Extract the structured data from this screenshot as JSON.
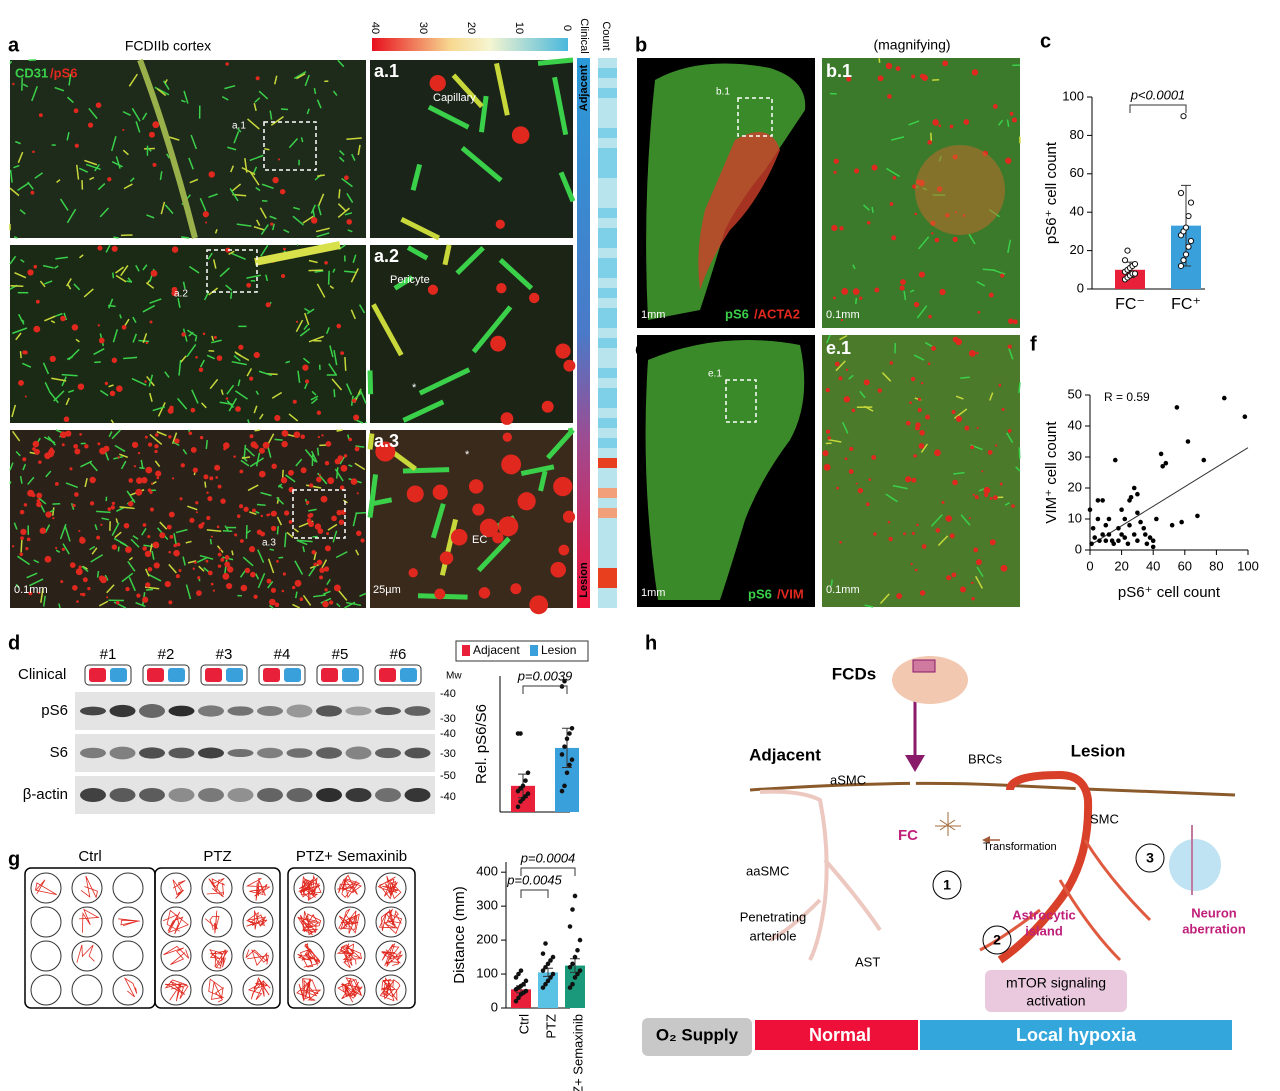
{
  "figure": {
    "panel_labels": [
      "a",
      "b",
      "c",
      "d",
      "e",
      "f",
      "g",
      "h"
    ],
    "a": {
      "title": "FCDIIb cortex",
      "stain_green": "CD31",
      "stain_red": "/pS6",
      "insets": [
        "a.1",
        "a.2",
        "a.3"
      ],
      "roi_labels": [
        "a.1",
        "a.2",
        "a.3"
      ],
      "annotations": [
        "Capillary",
        "Pericyte",
        "*",
        "*",
        "EC"
      ],
      "scalebars": [
        "0.1mm",
        "25µm"
      ],
      "colorbar_ticks": [
        40,
        30,
        20,
        10,
        0
      ],
      "strip_headers": [
        "Clinical",
        "Count"
      ],
      "strip_labels": [
        "Adjacent",
        "Lesion"
      ]
    },
    "b": {
      "subtitle": "(magnifying)",
      "inset": "b.1",
      "roi": "b.1",
      "scalebars": [
        "1mm",
        "0.1mm"
      ],
      "stain_green": "pS6",
      "stain_red": "/ACTA2"
    },
    "e": {
      "inset": "e.1",
      "roi": "e.1",
      "scalebars": [
        "1mm",
        "0.1mm"
      ],
      "stain_green": "pS6",
      "stain_red": "/VIM"
    },
    "d": {
      "lanes": [
        "#1",
        "#2",
        "#3",
        "#4",
        "#5",
        "#6"
      ],
      "row_clinical": "Clinical",
      "rows": [
        "pS6",
        "S6",
        "β-actin"
      ],
      "mw_header": "Mw",
      "mw": [
        "-40",
        "-30",
        "-40",
        "-30",
        "-50",
        "-40"
      ]
    },
    "g": {
      "groups": [
        "Ctrl",
        "PTZ",
        "PTZ+ Semaxinib"
      ]
    },
    "h": {
      "fcds": "FCDs",
      "adjacent": "Adjacent",
      "lesion": "Lesion",
      "asmc": "aSMC",
      "brcs": "BRCs",
      "smc": "SMC",
      "fc": "FC",
      "transformation": "Transformation",
      "aasmc": "aaSMC",
      "arteriole": [
        "Penetrating",
        "arteriole"
      ],
      "ast": "AST",
      "astro": [
        "Astrocytic",
        "island"
      ],
      "neuron": [
        "Neuron",
        "aberration"
      ],
      "mtor": [
        "mTOR signaling",
        "activation"
      ],
      "steps": [
        "1",
        "2",
        "3"
      ],
      "supply": "O₂ Supply",
      "normal": "Normal",
      "hypoxia": "Local hypoxia"
    }
  },
  "chart_data": [
    {
      "type": "bar",
      "categories": [
        "FC⁻",
        "FC⁺"
      ],
      "values": [
        10,
        33
      ],
      "errors": [
        4,
        21
      ],
      "colors": [
        "#e8203a",
        "#3aa0dc"
      ],
      "points": [
        [
          5,
          6,
          7,
          8,
          8,
          9,
          10,
          11,
          12,
          13,
          15,
          20
        ],
        [
          12,
          15,
          18,
          22,
          25,
          28,
          30,
          32,
          38,
          45,
          50,
          90
        ]
      ],
      "ylabel": "pS6⁺ cell count",
      "ylim": [
        0,
        100
      ],
      "yticks": [
        0,
        20,
        40,
        60,
        80,
        100
      ],
      "annotations": [
        "p<0.0001"
      ]
    },
    {
      "type": "scatter",
      "xlabel": "pS6⁺ cell count",
      "ylabel": "VIM⁺ cell count",
      "annotation": "R = 0.59",
      "color": "#000000",
      "x": [
        0,
        1,
        2,
        3,
        5,
        5,
        6,
        8,
        10,
        10,
        12,
        12,
        14,
        15,
        16,
        18,
        18,
        20,
        20,
        22,
        22,
        24,
        25,
        25,
        26,
        28,
        28,
        30,
        30,
        30,
        32,
        34,
        35,
        36,
        38,
        40,
        40,
        42,
        45,
        48,
        52,
        55,
        58,
        62,
        68,
        72,
        85,
        98,
        46,
        8
      ],
      "y": [
        13,
        2,
        7,
        4,
        16,
        10,
        3,
        5,
        3,
        8,
        5,
        10,
        3,
        2,
        29,
        7,
        3,
        13,
        5,
        4,
        10,
        2,
        16,
        8,
        17,
        20,
        5,
        12,
        3,
        18,
        9,
        7,
        5,
        2,
        4,
        3,
        1,
        10,
        31,
        28,
        8,
        46,
        9,
        35,
        11,
        29,
        49,
        43,
        27,
        16
      ],
      "trendline": {
        "x": [
          0,
          100
        ],
        "y": [
          1.5,
          33
        ]
      },
      "xlim": [
        0,
        100
      ],
      "ylim": [
        0,
        50
      ],
      "xticks": [
        0,
        20,
        40,
        60,
        80,
        100
      ],
      "yticks": [
        0,
        10,
        20,
        30,
        40,
        50
      ]
    },
    {
      "type": "bar",
      "categories": [
        null,
        null
      ],
      "values": [
        1.0,
        2.45
      ],
      "errors": [
        0.45,
        0.75
      ],
      "colors": [
        "#e8203a",
        "#3aa0dc"
      ],
      "points": [
        [
          0.2,
          0.4,
          0.5,
          0.6,
          0.7,
          0.8,
          0.9,
          1.0,
          1.2,
          1.5,
          3.0,
          3.0
        ],
        [
          0.8,
          1.0,
          1.5,
          1.8,
          2.0,
          2.2,
          2.5,
          2.8,
          3.0,
          3.2,
          4.8,
          5.0
        ]
      ],
      "legend": [
        "Adjacent",
        "Lesion"
      ],
      "ylabel": "Rel. pS6/S6",
      "ylim": [
        0,
        5.2
      ],
      "annotations": [
        "p=0.0039"
      ]
    },
    {
      "type": "bar",
      "categories": [
        "Ctrl",
        "PTZ",
        "PTZ+ Semaxinib"
      ],
      "values": [
        55,
        105,
        125
      ],
      "errors": [
        10,
        12,
        20
      ],
      "colors": [
        "#e8203a",
        "#5ac2e4",
        "#1a9a7a"
      ],
      "points": [
        [
          20,
          30,
          40,
          45,
          50,
          55,
          60,
          65,
          70,
          80,
          90,
          100,
          110
        ],
        [
          60,
          70,
          80,
          90,
          100,
          110,
          120,
          130,
          140,
          150,
          160,
          190
        ],
        [
          60,
          70,
          90,
          100,
          110,
          120,
          130,
          150,
          170,
          200,
          240,
          290,
          330
        ]
      ],
      "ylabel": "Distance (mm)",
      "ylim": [
        0,
        430
      ],
      "yticks": [
        0,
        100,
        200,
        300,
        400
      ],
      "annotations": [
        "p=0.0045",
        "p=0.0004"
      ]
    }
  ]
}
